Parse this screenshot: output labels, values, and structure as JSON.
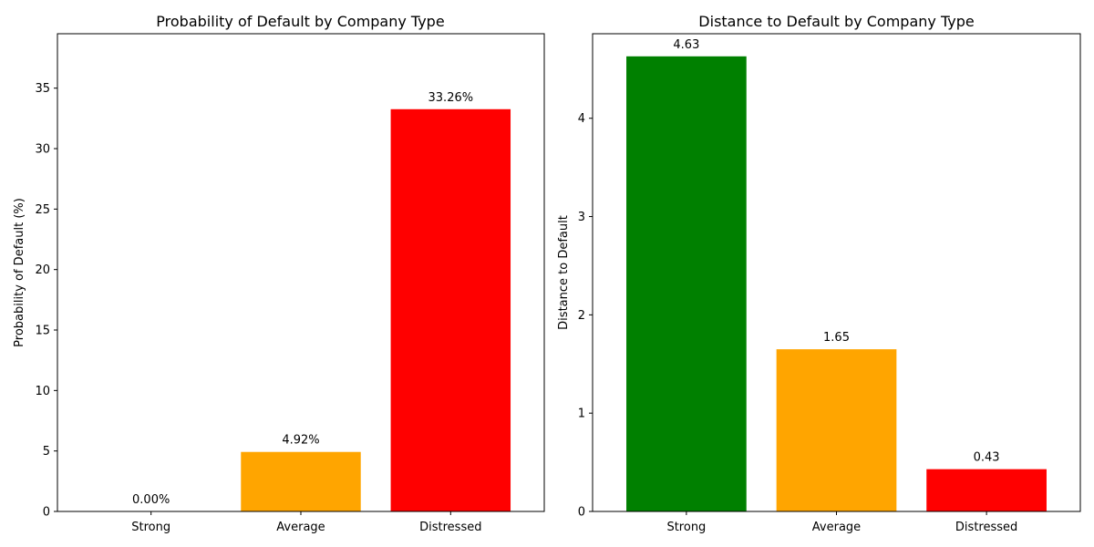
{
  "chart_data": [
    {
      "type": "bar",
      "title": "Probability of Default by Company Type",
      "xlabel": "",
      "ylabel": "Probability of Default (%)",
      "categories": [
        "Strong",
        "Average",
        "Distressed"
      ],
      "values": [
        0.0,
        4.92,
        33.26
      ],
      "data_labels": [
        "0.00%",
        "4.92%",
        "33.26%"
      ],
      "colors": [
        "#008000",
        "#ffa500",
        "#ff0000"
      ],
      "ylim": [
        0,
        39.5
      ],
      "yticks": [
        0,
        5,
        10,
        15,
        20,
        25,
        30,
        35
      ],
      "grid": false,
      "legend": "none"
    },
    {
      "type": "bar",
      "title": "Distance to Default by Company Type",
      "xlabel": "",
      "ylabel": "Distance to Default",
      "categories": [
        "Strong",
        "Average",
        "Distressed"
      ],
      "values": [
        4.63,
        1.65,
        0.43
      ],
      "data_labels": [
        "4.63",
        "1.65",
        "0.43"
      ],
      "colors": [
        "#008000",
        "#ffa500",
        "#ff0000"
      ],
      "ylim": [
        0,
        4.86
      ],
      "yticks": [
        0,
        1,
        2,
        3,
        4
      ],
      "grid": false,
      "legend": "none"
    }
  ]
}
